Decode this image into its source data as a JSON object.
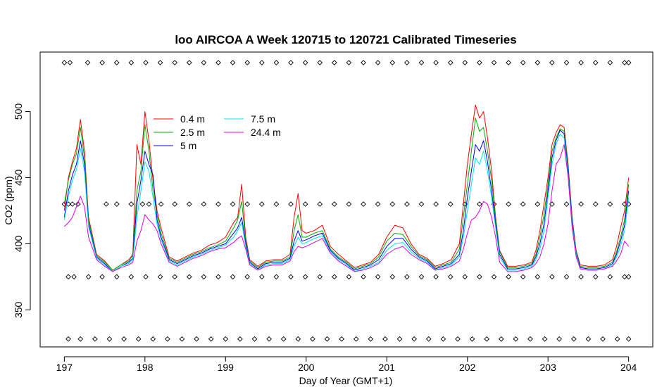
{
  "chart_data": {
    "type": "line",
    "title": "loo AIRCOA A  Week 120715 to 120721  Calibrated Timeseries",
    "xlabel": "Day of Year (GMT+1)",
    "ylabel": "CO2 (ppm)",
    "xlim": [
      196.7,
      204.3
    ],
    "ylim": [
      322,
      545
    ],
    "xticks": [
      197,
      198,
      199,
      200,
      201,
      202,
      203,
      204
    ],
    "xtick_labels": [
      "197",
      "198",
      "199",
      "200",
      "201",
      "202",
      "203",
      "204"
    ],
    "yticks": [
      350,
      400,
      450,
      500
    ],
    "ytick_labels": [
      "350",
      "400",
      "450",
      "500"
    ],
    "grid": false,
    "legend_position": "top-left",
    "series": [
      {
        "name": "0.4 m",
        "color": "#ff0000",
        "x": [
          197.0,
          197.05,
          197.1,
          197.15,
          197.2,
          197.25,
          197.3,
          197.4,
          197.5,
          197.6,
          197.7,
          197.8,
          197.85,
          197.9,
          197.95,
          198.0,
          198.05,
          198.1,
          198.15,
          198.2,
          198.3,
          198.4,
          198.5,
          198.6,
          198.7,
          198.8,
          198.9,
          199.0,
          199.1,
          199.15,
          199.2,
          199.25,
          199.3,
          199.4,
          199.5,
          199.6,
          199.7,
          199.8,
          199.85,
          199.9,
          199.95,
          200.0,
          200.1,
          200.2,
          200.3,
          200.4,
          200.5,
          200.6,
          200.7,
          200.8,
          200.9,
          201.0,
          201.1,
          201.2,
          201.3,
          201.4,
          201.5,
          201.6,
          201.7,
          201.8,
          201.9,
          201.95,
          202.0,
          202.05,
          202.1,
          202.15,
          202.2,
          202.25,
          202.3,
          202.35,
          202.4,
          202.5,
          202.6,
          202.7,
          202.8,
          202.85,
          202.9,
          202.95,
          203.0,
          203.05,
          203.1,
          203.15,
          203.2,
          203.25,
          203.3,
          203.35,
          203.4,
          203.5,
          203.6,
          203.7,
          203.8,
          203.85,
          203.9,
          203.95,
          204.0
        ],
        "y": [
          425,
          450,
          462,
          472,
          494,
          470,
          420,
          392,
          387,
          380,
          384,
          388,
          392,
          475,
          460,
          500,
          478,
          448,
          425,
          412,
          390,
          387,
          390,
          393,
          395,
          399,
          401,
          405,
          416,
          420,
          445,
          405,
          388,
          383,
          387,
          388,
          388,
          392,
          420,
          438,
          410,
          408,
          410,
          414,
          398,
          392,
          387,
          382,
          384,
          386,
          392,
          405,
          414,
          412,
          400,
          392,
          389,
          383,
          385,
          388,
          400,
          430,
          460,
          483,
          505,
          495,
          500,
          480,
          455,
          420,
          395,
          383,
          383,
          384,
          386,
          395,
          410,
          430,
          450,
          475,
          484,
          490,
          488,
          460,
          420,
          395,
          384,
          383,
          383,
          384,
          388,
          398,
          412,
          425,
          450
        ]
      },
      {
        "name": "2.5 m",
        "color": "#00b000",
        "x": [
          197.0,
          197.05,
          197.1,
          197.15,
          197.2,
          197.25,
          197.3,
          197.4,
          197.5,
          197.6,
          197.7,
          197.8,
          197.85,
          197.9,
          197.95,
          198.0,
          198.05,
          198.1,
          198.15,
          198.2,
          198.3,
          198.4,
          198.5,
          198.6,
          198.7,
          198.8,
          198.9,
          199.0,
          199.1,
          199.15,
          199.2,
          199.25,
          199.3,
          199.4,
          199.5,
          199.6,
          199.7,
          199.8,
          199.85,
          199.9,
          199.95,
          200.0,
          200.1,
          200.2,
          200.3,
          200.4,
          200.5,
          200.6,
          200.7,
          200.8,
          200.9,
          201.0,
          201.1,
          201.2,
          201.3,
          201.4,
          201.5,
          201.6,
          201.7,
          201.8,
          201.9,
          201.95,
          202.0,
          202.05,
          202.1,
          202.15,
          202.2,
          202.25,
          202.3,
          202.35,
          202.4,
          202.5,
          202.6,
          202.7,
          202.8,
          202.85,
          202.9,
          202.95,
          203.0,
          203.05,
          203.1,
          203.15,
          203.2,
          203.25,
          203.3,
          203.35,
          203.4,
          203.5,
          203.6,
          203.7,
          203.8,
          203.85,
          203.9,
          203.95,
          204.0
        ],
        "y": [
          430,
          448,
          460,
          468,
          488,
          465,
          418,
          391,
          386,
          380,
          384,
          387,
          391,
          440,
          455,
          490,
          470,
          440,
          422,
          408,
          389,
          386,
          389,
          392,
          394,
          397,
          399,
          402,
          412,
          418,
          432,
          402,
          387,
          382,
          386,
          387,
          387,
          390,
          410,
          422,
          405,
          405,
          408,
          410,
          396,
          390,
          386,
          381,
          383,
          385,
          390,
          402,
          408,
          407,
          398,
          391,
          388,
          382,
          384,
          386,
          396,
          420,
          445,
          470,
          495,
          485,
          488,
          470,
          448,
          418,
          394,
          382,
          382,
          383,
          385,
          392,
          405,
          422,
          445,
          470,
          480,
          487,
          485,
          458,
          418,
          394,
          383,
          382,
          382,
          383,
          386,
          394,
          405,
          418,
          445
        ]
      },
      {
        "name": "5 m",
        "color": "#0000ff",
        "x": [
          197.0,
          197.05,
          197.1,
          197.15,
          197.2,
          197.25,
          197.3,
          197.4,
          197.5,
          197.6,
          197.7,
          197.8,
          197.85,
          197.9,
          197.95,
          198.0,
          198.05,
          198.1,
          198.15,
          198.2,
          198.3,
          198.4,
          198.5,
          198.6,
          198.7,
          198.8,
          198.9,
          199.0,
          199.1,
          199.15,
          199.2,
          199.25,
          199.3,
          199.4,
          199.5,
          199.6,
          199.7,
          199.8,
          199.85,
          199.9,
          199.95,
          200.0,
          200.1,
          200.2,
          200.3,
          200.4,
          200.5,
          200.6,
          200.7,
          200.8,
          200.9,
          201.0,
          201.1,
          201.2,
          201.3,
          201.4,
          201.5,
          201.6,
          201.7,
          201.8,
          201.9,
          201.95,
          202.0,
          202.05,
          202.1,
          202.15,
          202.2,
          202.25,
          202.3,
          202.35,
          202.4,
          202.5,
          202.6,
          202.7,
          202.8,
          202.85,
          202.9,
          202.95,
          203.0,
          203.05,
          203.1,
          203.15,
          203.2,
          203.25,
          203.3,
          203.35,
          203.4,
          203.5,
          203.6,
          203.7,
          203.8,
          203.85,
          203.9,
          203.95,
          204.0
        ],
        "y": [
          420,
          440,
          452,
          460,
          478,
          460,
          415,
          390,
          385,
          379,
          383,
          386,
          389,
          430,
          448,
          470,
          460,
          452,
          418,
          405,
          388,
          385,
          388,
          391,
          393,
          396,
          398,
          400,
          408,
          412,
          420,
          400,
          386,
          381,
          385,
          386,
          386,
          389,
          402,
          410,
          402,
          403,
          406,
          408,
          395,
          389,
          385,
          380,
          382,
          384,
          388,
          398,
          404,
          404,
          396,
          390,
          387,
          381,
          383,
          385,
          392,
          410,
          435,
          455,
          475,
          470,
          478,
          462,
          440,
          415,
          392,
          381,
          381,
          382,
          384,
          390,
          400,
          415,
          440,
          465,
          478,
          486,
          483,
          455,
          416,
          393,
          382,
          381,
          381,
          382,
          385,
          392,
          402,
          414,
          440
        ]
      },
      {
        "name": "7.5 m",
        "color": "#00e5e5",
        "x": [
          197.0,
          197.05,
          197.1,
          197.15,
          197.2,
          197.25,
          197.3,
          197.4,
          197.5,
          197.6,
          197.7,
          197.8,
          197.85,
          197.9,
          197.95,
          198.0,
          198.05,
          198.1,
          198.15,
          198.2,
          198.3,
          198.4,
          198.5,
          198.6,
          198.7,
          198.8,
          198.9,
          199.0,
          199.1,
          199.15,
          199.2,
          199.25,
          199.3,
          199.4,
          199.5,
          199.6,
          199.7,
          199.8,
          199.85,
          199.9,
          199.95,
          200.0,
          200.1,
          200.2,
          200.3,
          200.4,
          200.5,
          200.6,
          200.7,
          200.8,
          200.9,
          201.0,
          201.1,
          201.2,
          201.3,
          201.4,
          201.5,
          201.6,
          201.7,
          201.8,
          201.9,
          201.95,
          202.0,
          202.05,
          202.1,
          202.15,
          202.2,
          202.25,
          202.3,
          202.35,
          202.4,
          202.5,
          202.6,
          202.7,
          202.8,
          202.85,
          202.9,
          202.95,
          203.0,
          203.05,
          203.1,
          203.15,
          203.2,
          203.25,
          203.3,
          203.35,
          203.4,
          203.5,
          203.6,
          203.7,
          203.8,
          203.85,
          203.9,
          203.95,
          204.0
        ],
        "y": [
          418,
          436,
          448,
          456,
          472,
          455,
          413,
          389,
          384,
          379,
          383,
          385,
          388,
          420,
          440,
          462,
          455,
          435,
          415,
          403,
          387,
          384,
          387,
          390,
          392,
          395,
          397,
          399,
          405,
          410,
          416,
          398,
          385,
          380,
          384,
          385,
          385,
          388,
          398,
          405,
          400,
          401,
          404,
          406,
          394,
          388,
          384,
          379,
          381,
          383,
          386,
          395,
          400,
          401,
          394,
          389,
          386,
          380,
          382,
          384,
          390,
          405,
          425,
          445,
          465,
          460,
          470,
          455,
          435,
          412,
          390,
          380,
          380,
          381,
          383,
          388,
          396,
          410,
          435,
          460,
          475,
          483,
          480,
          452,
          414,
          392,
          381,
          380,
          380,
          381,
          384,
          390,
          398,
          410,
          435
        ]
      },
      {
        "name": "24.4 m",
        "color": "#e000e0",
        "x": [
          197.0,
          197.05,
          197.1,
          197.15,
          197.2,
          197.25,
          197.3,
          197.4,
          197.5,
          197.6,
          197.7,
          197.8,
          197.85,
          197.9,
          197.95,
          198.0,
          198.05,
          198.1,
          198.15,
          198.2,
          198.3,
          198.4,
          198.5,
          198.6,
          198.7,
          198.8,
          198.9,
          199.0,
          199.1,
          199.15,
          199.2,
          199.25,
          199.3,
          199.4,
          199.5,
          199.6,
          199.7,
          199.8,
          199.85,
          199.9,
          199.95,
          200.0,
          200.1,
          200.2,
          200.3,
          200.4,
          200.5,
          200.6,
          200.7,
          200.8,
          200.9,
          201.0,
          201.1,
          201.2,
          201.3,
          201.4,
          201.5,
          201.6,
          201.7,
          201.8,
          201.9,
          201.95,
          202.0,
          202.05,
          202.1,
          202.15,
          202.2,
          202.25,
          202.3,
          202.35,
          202.4,
          202.5,
          202.6,
          202.7,
          202.8,
          202.85,
          202.9,
          202.95,
          203.0,
          203.05,
          203.1,
          203.15,
          203.2,
          203.25,
          203.3,
          203.35,
          203.4,
          203.5,
          203.6,
          203.7,
          203.8,
          203.85,
          203.9,
          203.95,
          204.0
        ],
        "y": [
          413,
          416,
          420,
          428,
          436,
          428,
          405,
          388,
          383,
          379,
          382,
          384,
          386,
          402,
          410,
          422,
          418,
          415,
          410,
          400,
          386,
          383,
          386,
          389,
          391,
          394,
          396,
          397,
          401,
          404,
          406,
          396,
          384,
          380,
          383,
          384,
          384,
          387,
          394,
          398,
          397,
          398,
          401,
          404,
          393,
          387,
          383,
          379,
          380,
          382,
          385,
          392,
          396,
          398,
          392,
          388,
          385,
          380,
          381,
          383,
          387,
          396,
          408,
          418,
          420,
          425,
          432,
          430,
          420,
          405,
          386,
          379,
          379,
          380,
          382,
          385,
          390,
          400,
          415,
          440,
          460,
          465,
          475,
          450,
          412,
          390,
          381,
          380,
          380,
          381,
          383,
          387,
          392,
          402,
          398
        ]
      }
    ],
    "diamond_rows": [
      {
        "name": "row-537",
        "y": 537,
        "x": [
          197.0,
          197.07,
          197.29,
          197.47,
          197.65,
          197.83,
          198.01,
          198.19,
          198.37,
          198.55,
          198.73,
          198.91,
          199.09,
          199.27,
          199.45,
          199.63,
          199.81,
          199.99,
          200.17,
          200.35,
          200.53,
          200.71,
          200.89,
          201.07,
          201.25,
          201.43,
          201.61,
          201.79,
          201.97,
          202.15,
          202.33,
          202.51,
          202.69,
          202.87,
          203.05,
          203.23,
          203.41,
          203.59,
          203.77,
          203.95,
          204.0
        ]
      },
      {
        "name": "row-430",
        "y": 430,
        "x": [
          197.0,
          197.05,
          197.1,
          197.17,
          197.52,
          197.65,
          197.83,
          197.97,
          198.05,
          198.2,
          198.37,
          198.55,
          198.73,
          198.91,
          199.09,
          199.27,
          199.45,
          199.63,
          199.81,
          199.99,
          200.17,
          200.35,
          200.53,
          200.71,
          200.89,
          201.07,
          201.25,
          201.43,
          201.61,
          201.79,
          201.97,
          202.15,
          202.33,
          202.51,
          202.69,
          202.87,
          203.05,
          203.23,
          203.41,
          203.59,
          203.77,
          203.95,
          204.0
        ]
      },
      {
        "name": "row-375",
        "y": 375,
        "x": [
          197.05,
          197.12,
          197.3,
          197.47,
          197.65,
          197.83,
          198.01,
          198.19,
          198.37,
          198.55,
          198.73,
          198.91,
          199.09,
          199.27,
          199.45,
          199.63,
          199.81,
          199.99,
          200.17,
          200.35,
          200.53,
          200.71,
          200.89,
          201.07,
          201.25,
          201.43,
          201.61,
          201.79,
          201.97,
          202.15,
          202.33,
          202.51,
          202.69,
          202.87,
          203.05,
          203.23,
          203.41,
          203.59,
          203.77,
          203.95,
          204.0
        ]
      },
      {
        "name": "row-328",
        "y": 328,
        "x": [
          197.05,
          197.2,
          197.38,
          197.56,
          197.74,
          197.92,
          198.1,
          198.28,
          198.46,
          198.64,
          198.82,
          199.0,
          199.18,
          199.36,
          199.54,
          199.72,
          199.9,
          200.08,
          200.26,
          200.44,
          200.62,
          200.8,
          200.98,
          201.16,
          201.34,
          201.52,
          201.7,
          201.88,
          202.06,
          202.24,
          202.42,
          202.6,
          202.78,
          202.96,
          203.14,
          203.32,
          203.5,
          203.68,
          203.86,
          204.0
        ]
      }
    ]
  }
}
